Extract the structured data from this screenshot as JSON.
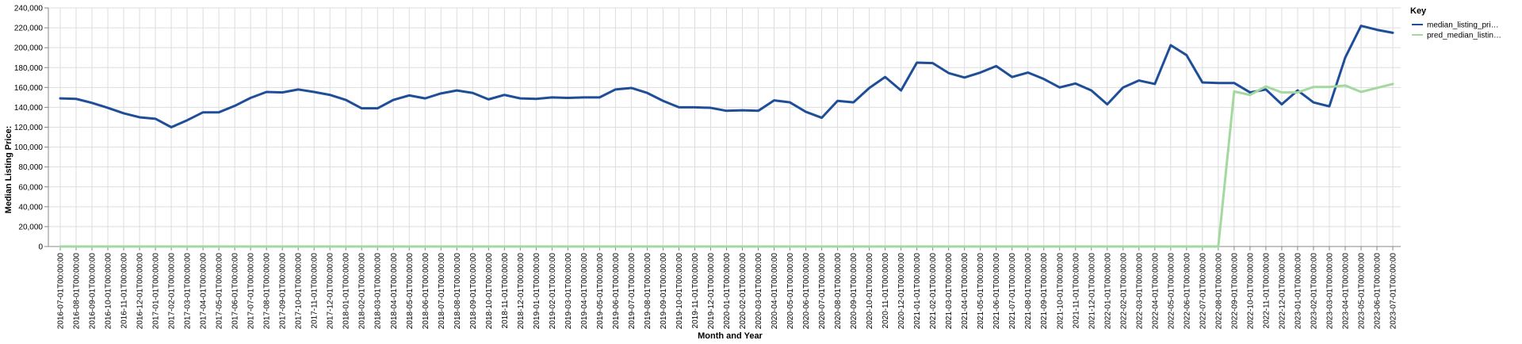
{
  "chart_data": {
    "type": "line",
    "xlabel": "Month and Year",
    "ylabel": "Median Listing Price:",
    "ylim": [
      0,
      240000
    ],
    "y_ticks": [
      "0",
      "20,000",
      "40,000",
      "60,000",
      "80,000",
      "100,000",
      "120,000",
      "140,000",
      "160,000",
      "180,000",
      "200,000",
      "220,000",
      "240,000"
    ],
    "grid": true,
    "legend": {
      "title": "Key",
      "placement": "top-right"
    },
    "x": [
      "2016-07-01T00:00:00",
      "2016-08-01T00:00:00",
      "2016-09-01T00:00:00",
      "2016-10-01T00:00:00",
      "2016-11-01T00:00:00",
      "2016-12-01T00:00:00",
      "2017-01-01T00:00:00",
      "2017-02-01T00:00:00",
      "2017-03-01T00:00:00",
      "2017-04-01T00:00:00",
      "2017-05-01T00:00:00",
      "2017-06-01T00:00:00",
      "2017-07-01T00:00:00",
      "2017-08-01T00:00:00",
      "2017-09-01T00:00:00",
      "2017-10-01T00:00:00",
      "2017-11-01T00:00:00",
      "2017-12-01T00:00:00",
      "2018-01-01T00:00:00",
      "2018-02-01T00:00:00",
      "2018-03-01T00:00:00",
      "2018-04-01T00:00:00",
      "2018-05-01T00:00:00",
      "2018-06-01T00:00:00",
      "2018-07-01T00:00:00",
      "2018-08-01T00:00:00",
      "2018-09-01T00:00:00",
      "2018-10-01T00:00:00",
      "2018-11-01T00:00:00",
      "2018-12-01T00:00:00",
      "2019-01-01T00:00:00",
      "2019-02-01T00:00:00",
      "2019-03-01T00:00:00",
      "2019-04-01T00:00:00",
      "2019-05-01T00:00:00",
      "2019-06-01T00:00:00",
      "2019-07-01T00:00:00",
      "2019-08-01T00:00:00",
      "2019-09-01T00:00:00",
      "2019-10-01T00:00:00",
      "2019-11-01T00:00:00",
      "2019-12-01T00:00:00",
      "2020-01-01T00:00:00",
      "2020-02-01T00:00:00",
      "2020-03-01T00:00:00",
      "2020-04-01T00:00:00",
      "2020-05-01T00:00:00",
      "2020-06-01T00:00:00",
      "2020-07-01T00:00:00",
      "2020-08-01T00:00:00",
      "2020-09-01T00:00:00",
      "2020-10-01T00:00:00",
      "2020-11-01T00:00:00",
      "2020-12-01T00:00:00",
      "2021-01-01T00:00:00",
      "2021-02-01T00:00:00",
      "2021-03-01T00:00:00",
      "2021-04-01T00:00:00",
      "2021-05-01T00:00:00",
      "2021-06-01T00:00:00",
      "2021-07-01T00:00:00",
      "2021-08-01T00:00:00",
      "2021-09-01T00:00:00",
      "2021-10-01T00:00:00",
      "2021-11-01T00:00:00",
      "2021-12-01T00:00:00",
      "2022-01-01T00:00:00",
      "2022-02-01T00:00:00",
      "2022-03-01T00:00:00",
      "2022-04-01T00:00:00",
      "2022-05-01T00:00:00",
      "2022-06-01T00:00:00",
      "2022-07-01T00:00:00",
      "2022-08-01T00:00:00",
      "2022-09-01T00:00:00",
      "2022-10-01T00:00:00",
      "2022-11-01T00:00:00",
      "2022-12-01T00:00:00",
      "2023-01-01T00:00:00",
      "2023-02-01T00:00:00",
      "2023-03-01T00:00:00",
      "2023-04-01T00:00:00",
      "2023-05-01T00:00:00",
      "2023-06-01T00:00:00",
      "2023-07-01T00:00:00"
    ],
    "series": [
      {
        "name": "median_listing_pri…",
        "color": "#1f4e99",
        "values": [
          149000,
          148500,
          144500,
          139500,
          134000,
          130000,
          128500,
          120000,
          127000,
          135000,
          135000,
          141500,
          149500,
          155500,
          155000,
          158000,
          155500,
          152500,
          147500,
          139000,
          139000,
          147500,
          152000,
          149000,
          154000,
          157000,
          154500,
          148000,
          152500,
          149000,
          148500,
          150000,
          149500,
          150000,
          150000,
          158000,
          159500,
          154500,
          146500,
          140000,
          140000,
          139500,
          136500,
          137000,
          136500,
          147000,
          145000,
          135500,
          129500,
          146500,
          145000,
          159500,
          170500,
          157000,
          185000,
          184500,
          174500,
          170000,
          175000,
          181500,
          170500,
          175000,
          168500,
          160000,
          164000,
          157000,
          143000,
          160000,
          167000,
          163500,
          202500,
          192500,
          165000,
          164500,
          164500,
          155000,
          158000,
          143000,
          157000,
          145000,
          141000,
          190000,
          222000,
          218000,
          215000
        ]
      },
      {
        "name": "pred_median_listin…",
        "color": "#a3d99e",
        "values": [
          0,
          0,
          0,
          0,
          0,
          0,
          0,
          0,
          0,
          0,
          0,
          0,
          0,
          0,
          0,
          0,
          0,
          0,
          0,
          0,
          0,
          0,
          0,
          0,
          0,
          0,
          0,
          0,
          0,
          0,
          0,
          0,
          0,
          0,
          0,
          0,
          0,
          0,
          0,
          0,
          0,
          0,
          0,
          0,
          0,
          0,
          0,
          0,
          0,
          0,
          0,
          0,
          0,
          0,
          0,
          0,
          0,
          0,
          0,
          0,
          0,
          0,
          0,
          0,
          0,
          0,
          0,
          0,
          0,
          0,
          0,
          0,
          0,
          0,
          156000,
          152500,
          161000,
          155000,
          155000,
          160500,
          160500,
          162000,
          155500,
          159500,
          163500
        ]
      }
    ]
  }
}
